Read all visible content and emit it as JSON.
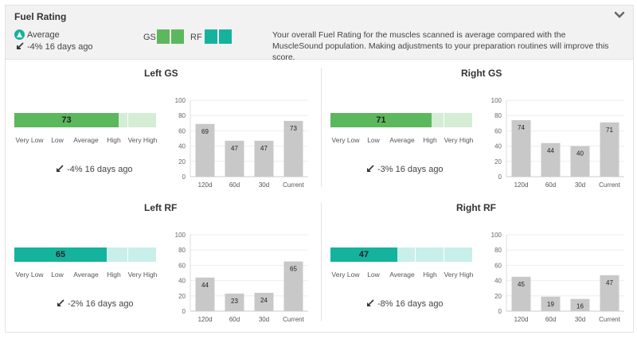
{
  "header": {
    "title": "Fuel Rating",
    "status_label": "Average",
    "trend": "-4% 16 days ago",
    "legend_gs": "GS",
    "legend_rf": "RF",
    "description": "Your overall Fuel Rating for the muscles scanned is average compared with the MuscleSound population. Making adjustments to your preparation routines will improve this score.",
    "icon": "chevron-down-icon"
  },
  "colors": {
    "gs": "#5cb85c",
    "gs_light": "#d4edd4",
    "rf": "#15b39d",
    "rf_light": "#c8efe9",
    "bar_grey": "#c8c8c8"
  },
  "scale_labels": [
    "Very Low",
    "Low",
    "Average",
    "High",
    "Very High"
  ],
  "quadrants": [
    {
      "title": "Left GS",
      "value": 73,
      "value_text": "73",
      "type": "gs",
      "trend": "-4% 16 days ago"
    },
    {
      "title": "Right GS",
      "value": 71,
      "value_text": "71",
      "type": "gs",
      "trend": "-3% 16 days ago"
    },
    {
      "title": "Left RF",
      "value": 65,
      "value_text": "65",
      "type": "rf",
      "trend": "-2% 16 days ago"
    },
    {
      "title": "Right RF",
      "value": 47,
      "value_text": "47",
      "type": "rf",
      "trend": "-8% 16 days ago"
    }
  ],
  "chart_data": [
    {
      "type": "bar",
      "title": "Left GS",
      "categories": [
        "120d",
        "60d",
        "30d",
        "Current"
      ],
      "values": [
        69,
        47,
        47,
        73
      ],
      "ylim": [
        0,
        100
      ],
      "yticks": [
        0,
        20,
        40,
        60,
        80,
        100
      ]
    },
    {
      "type": "bar",
      "title": "Right GS",
      "categories": [
        "120d",
        "60d",
        "30d",
        "Current"
      ],
      "values": [
        74,
        44,
        40,
        71
      ],
      "ylim": [
        0,
        100
      ],
      "yticks": [
        0,
        20,
        40,
        60,
        80,
        100
      ]
    },
    {
      "type": "bar",
      "title": "Left RF",
      "categories": [
        "120d",
        "60d",
        "30d",
        "Current"
      ],
      "values": [
        44,
        23,
        24,
        65
      ],
      "ylim": [
        0,
        100
      ],
      "yticks": [
        0,
        20,
        40,
        60,
        80,
        100
      ]
    },
    {
      "type": "bar",
      "title": "Right RF",
      "categories": [
        "120d",
        "60d",
        "30d",
        "Current"
      ],
      "values": [
        45,
        19,
        16,
        47
      ],
      "ylim": [
        0,
        100
      ],
      "yticks": [
        0,
        20,
        40,
        60,
        80,
        100
      ]
    }
  ]
}
